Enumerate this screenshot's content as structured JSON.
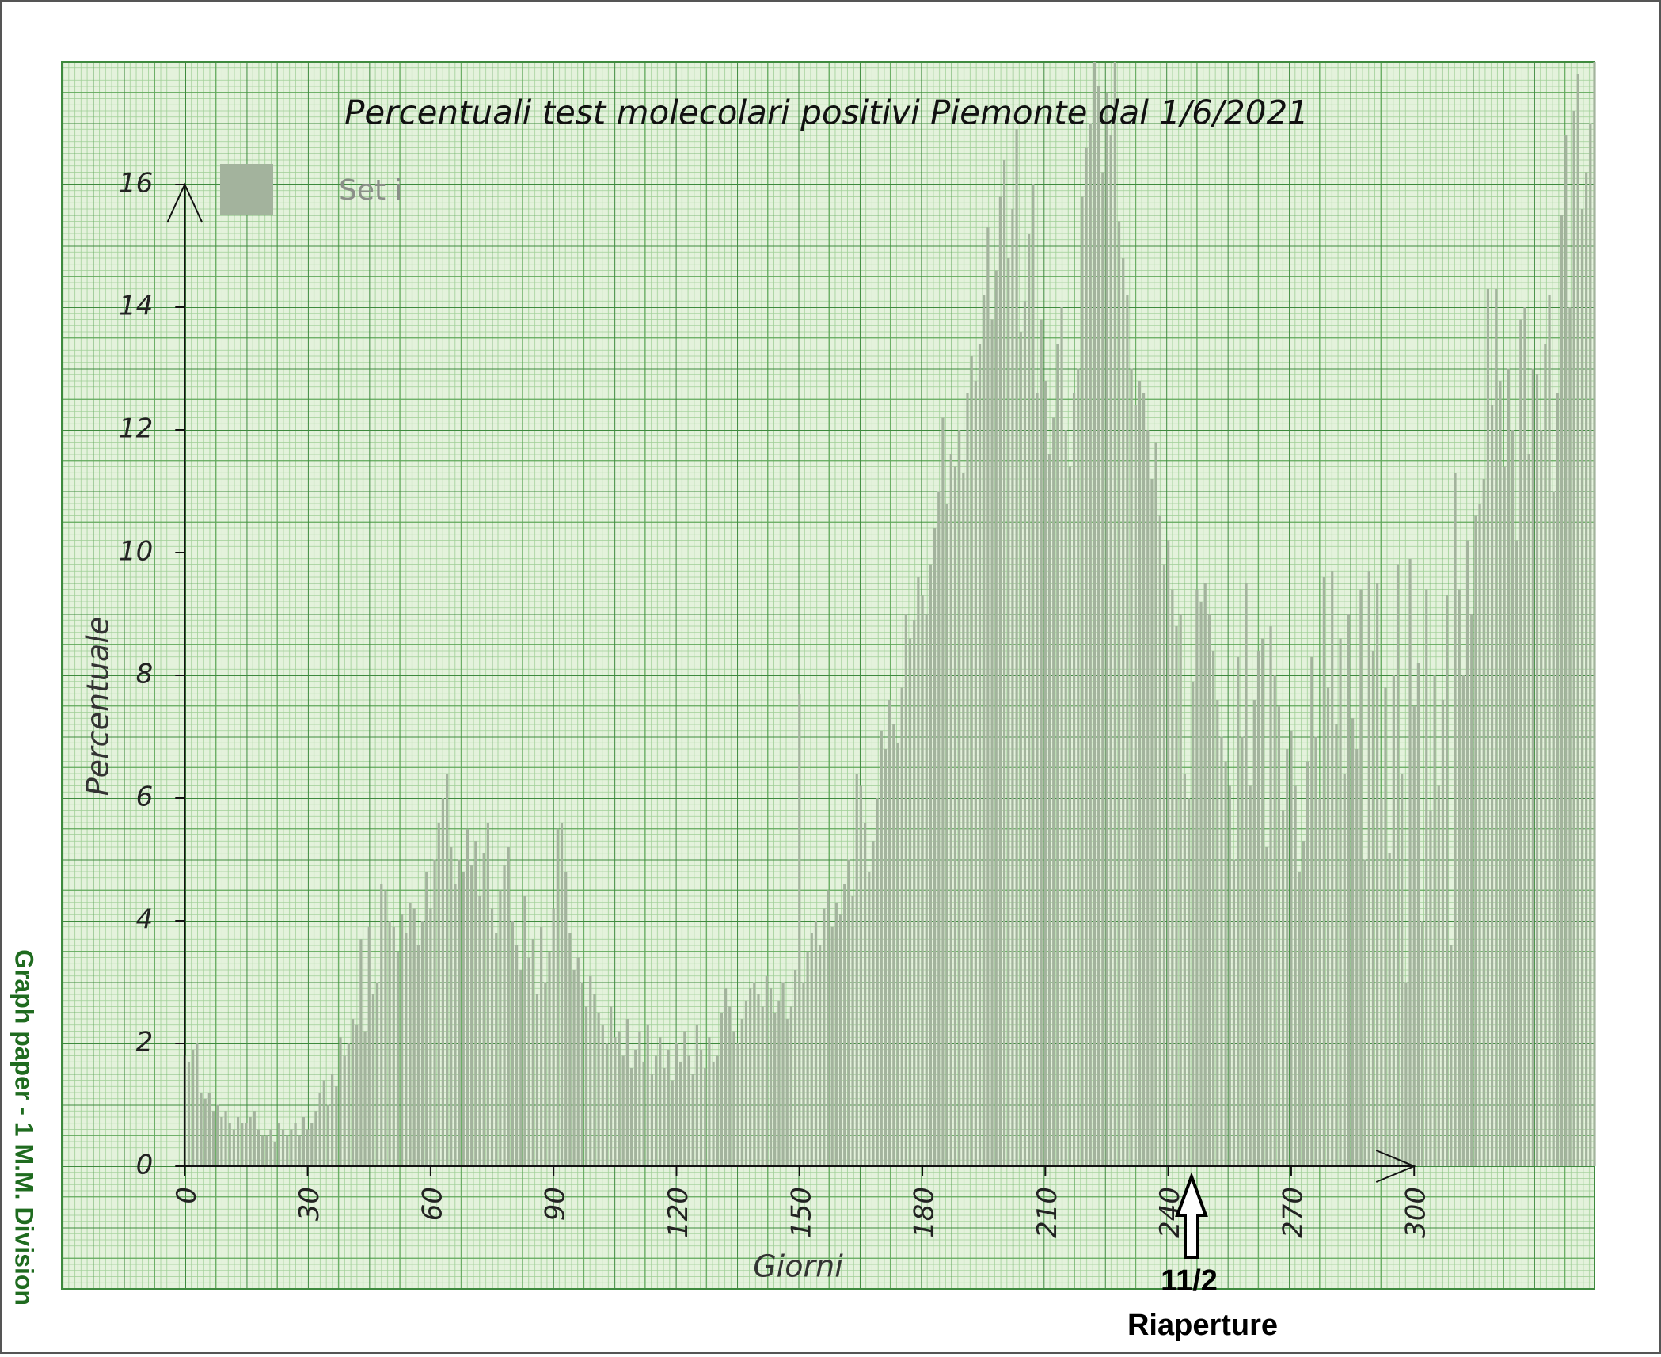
{
  "chart_data": {
    "type": "bar",
    "title": "Percentuali test molecolari positivi Piemonte dal 1/6/2021",
    "x_label": "Giorni",
    "y_label": "Percentuale",
    "annotations": [
      "11/2",
      "Riaperture",
      "Graph paper - 1 M.M. Division"
    ],
    "xlim": [
      -30,
      344
    ],
    "ylim": [
      -2,
      18
    ],
    "xticks": [
      0,
      30,
      60,
      90,
      120,
      150,
      180,
      210,
      240,
      270,
      300
    ],
    "yticks": [
      0,
      2,
      4,
      6,
      8,
      10,
      12,
      14,
      16
    ],
    "grid": true,
    "legend": "upper left",
    "x": [
      0,
      1,
      2,
      3,
      4,
      5,
      6,
      7,
      8,
      9,
      10,
      11,
      12,
      13,
      14,
      15,
      16,
      17,
      18,
      19,
      20,
      21,
      22,
      23,
      24,
      25,
      26,
      27,
      28,
      29,
      30,
      31,
      32,
      33,
      34,
      35,
      36,
      37,
      38,
      39,
      40,
      41,
      42,
      43,
      44,
      45,
      46,
      47,
      48,
      49,
      50,
      51,
      52,
      53,
      54,
      55,
      56,
      57,
      58,
      59,
      60,
      61,
      62,
      63,
      64,
      65,
      66,
      67,
      68,
      69,
      70,
      71,
      72,
      73,
      74,
      75,
      76,
      77,
      78,
      79,
      80,
      81,
      82,
      83,
      84,
      85,
      86,
      87,
      88,
      89,
      90,
      91,
      92,
      93,
      94,
      95,
      96,
      97,
      98,
      99,
      100,
      101,
      102,
      103,
      104,
      105,
      106,
      107,
      108,
      109,
      110,
      111,
      112,
      113,
      114,
      115,
      116,
      117,
      118,
      119,
      120,
      121,
      122,
      123,
      124,
      125,
      126,
      127,
      128,
      129,
      130,
      131,
      132,
      133,
      134,
      135,
      136,
      137,
      138,
      139,
      140,
      141,
      142,
      143,
      144,
      145,
      146,
      147,
      148,
      149,
      150,
      151,
      152,
      153,
      154,
      155,
      156,
      157,
      158,
      159,
      160,
      161,
      162,
      163,
      164,
      165,
      166,
      167,
      168,
      169,
      170,
      171,
      172,
      173,
      174,
      175,
      176,
      177,
      178,
      179,
      180,
      181,
      182,
      183,
      184,
      185,
      186,
      187,
      188,
      189,
      190,
      191,
      192,
      193,
      194,
      195,
      196,
      197,
      198,
      199,
      200,
      201,
      202,
      203,
      204,
      205,
      206,
      207,
      208,
      209,
      210,
      211,
      212,
      213,
      214,
      215,
      216,
      217,
      218,
      219,
      220,
      221,
      222,
      223,
      224,
      225,
      226,
      227,
      228,
      229,
      230,
      231,
      232,
      233,
      234,
      235,
      236,
      237,
      238,
      239,
      240,
      241,
      242,
      243,
      244,
      245,
      246,
      247,
      248,
      249,
      250,
      251,
      252,
      253,
      254,
      255,
      256,
      257,
      258,
      259,
      260,
      261,
      262,
      263,
      264,
      265,
      266,
      267,
      268,
      269,
      270,
      271,
      272,
      273,
      274,
      275,
      276,
      277,
      278,
      279,
      280,
      281,
      282,
      283,
      284,
      285,
      286,
      287,
      288,
      289,
      290,
      291,
      292,
      293,
      294,
      295,
      296,
      297,
      298,
      299,
      300,
      301,
      302,
      303,
      304,
      305,
      306,
      307,
      308,
      309,
      310,
      311,
      312,
      313,
      314,
      315,
      316,
      317,
      318,
      319,
      320,
      321,
      322,
      323,
      324,
      325,
      326,
      327,
      328,
      329,
      330,
      331,
      332,
      333,
      334,
      335,
      336,
      337,
      338,
      339,
      340,
      341,
      342,
      343,
      344
    ],
    "series": [
      {
        "name": "Set i",
        "color": "#a3b39d",
        "values": [
          1.8,
          1.7,
          1.9,
          2.0,
          1.2,
          1.1,
          1.2,
          0.9,
          1.0,
          0.8,
          0.9,
          0.7,
          0.6,
          0.8,
          0.7,
          0.7,
          0.8,
          0.9,
          0.6,
          0.5,
          0.5,
          0.6,
          0.4,
          0.7,
          0.6,
          0.5,
          0.6,
          0.7,
          0.5,
          0.8,
          0.6,
          0.7,
          0.9,
          1.2,
          1.4,
          1.0,
          1.5,
          1.3,
          2.1,
          1.8,
          2.0,
          2.4,
          2.3,
          3.7,
          2.2,
          3.9,
          2.8,
          3.0,
          4.6,
          4.5,
          4.0,
          3.9,
          3.5,
          4.1,
          3.8,
          4.3,
          4.2,
          3.6,
          4.0,
          4.8,
          4.2,
          5.0,
          5.6,
          6.0,
          6.4,
          5.2,
          4.6,
          5.0,
          4.8,
          5.5,
          4.9,
          5.3,
          4.4,
          5.1,
          5.6,
          4.2,
          3.8,
          4.5,
          4.9,
          5.2,
          4.0,
          3.6,
          3.2,
          4.4,
          3.4,
          3.7,
          2.8,
          3.9,
          3.0,
          3.5,
          4.2,
          5.5,
          5.6,
          4.8,
          3.8,
          3.2,
          3.4,
          3.0,
          2.6,
          3.1,
          2.8,
          2.5,
          2.3,
          2.0,
          2.6,
          2.1,
          2.2,
          1.8,
          2.4,
          1.6,
          1.9,
          2.2,
          1.7,
          2.3,
          1.5,
          1.8,
          2.1,
          1.6,
          1.9,
          1.4,
          2.0,
          1.7,
          2.2,
          1.8,
          1.5,
          2.3,
          1.9,
          1.6,
          2.1,
          1.7,
          1.8,
          2.5,
          2.9,
          2.6,
          2.2,
          2.0,
          2.4,
          2.7,
          2.9,
          3.0,
          2.8,
          2.6,
          3.1,
          2.9,
          2.5,
          2.7,
          3.0,
          2.4,
          2.6,
          3.2,
          7.7,
          3.0,
          3.5,
          3.8,
          4.0,
          3.6,
          4.2,
          4.5,
          3.9,
          4.3,
          4.1,
          4.6,
          5.0,
          4.4,
          6.4,
          6.2,
          5.6,
          4.8,
          5.3,
          6.0,
          7.1,
          6.8,
          7.6,
          7.2,
          6.9,
          7.8,
          9.0,
          8.6,
          8.9,
          9.6,
          9.3,
          9.0,
          9.8,
          10.4,
          11.0,
          12.2,
          10.8,
          11.6,
          11.4,
          12.0,
          11.3,
          12.6,
          13.2,
          12.8,
          13.4,
          14.2,
          15.3,
          13.8,
          14.6,
          15.8,
          16.4,
          14.8,
          15.6,
          16.9,
          13.6,
          14.1,
          15.2,
          16.0,
          12.6,
          13.8,
          12.8,
          11.6,
          12.2,
          13.4,
          14.0,
          12.0,
          11.4,
          12.6,
          13.0,
          15.8,
          16.6,
          17.0,
          18.0,
          17.6,
          16.2,
          17.5,
          16.8,
          18.0,
          15.4,
          14.8,
          14.2,
          13.0,
          12.4,
          12.8,
          12.6,
          12.0,
          11.2,
          11.8,
          10.6,
          9.8,
          10.2,
          9.4,
          8.8,
          9.0,
          6.4,
          6.0,
          7.9,
          9.4,
          9.2,
          9.5,
          9.0,
          8.4,
          7.6,
          7.0,
          6.6,
          6.2,
          5.0,
          8.3,
          7.0,
          9.5,
          6.2,
          7.6,
          8.4,
          8.6,
          5.2,
          8.8,
          8.0,
          7.5,
          5.8,
          6.8,
          7.1,
          6.2,
          4.8,
          5.3,
          6.6,
          8.3,
          7.0,
          6.0,
          9.6,
          7.8,
          9.7,
          7.2,
          8.6,
          6.4,
          9.0,
          7.3,
          6.8,
          9.4,
          5.0,
          9.7,
          8.4,
          9.5,
          6.0,
          7.8,
          5.1,
          8.0,
          9.8,
          6.4,
          3.0,
          9.9,
          7.5,
          8.2,
          4.0,
          9.4,
          5.8,
          8.0,
          6.2,
          7.6,
          9.3,
          3.6,
          11.3,
          9.4,
          8.0,
          10.2,
          9.0,
          10.6,
          10.8,
          11.2,
          14.3,
          12.4,
          14.3,
          12.8,
          11.4,
          13.0,
          12.0,
          10.2,
          13.8,
          14.0,
          11.6,
          13.0,
          12.9,
          12.0,
          13.4,
          14.2,
          11.0,
          12.6,
          15.5,
          16.8,
          14.0,
          17.2,
          17.8,
          15.6,
          16.2,
          17.0,
          18.0
        ]
      }
    ]
  }
}
